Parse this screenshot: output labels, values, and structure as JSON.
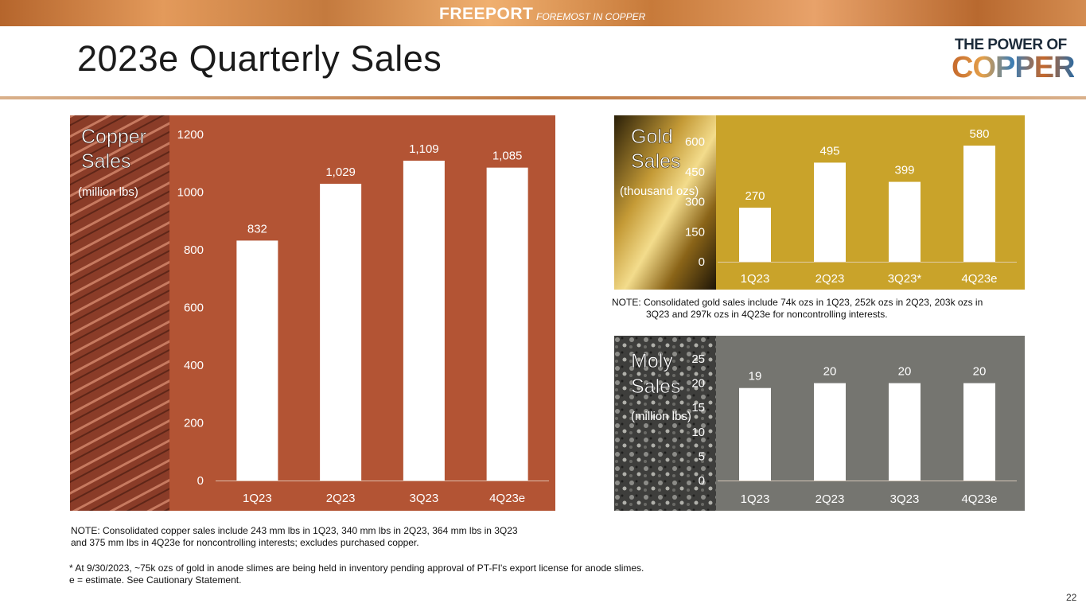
{
  "header": {
    "brand": "FREEPORT",
    "tagline": "FOREMOST IN COPPER",
    "title": "2023e Quarterly Sales",
    "badge_top": "THE POWER OF",
    "badge_bottom": "COPPER"
  },
  "colors": {
    "copper_bg": "#b35434",
    "gold_bg": "#c9a32a",
    "moly_bg": "#757570",
    "bar": "#ffffff"
  },
  "panels": {
    "copper": {
      "title_line1": "Copper",
      "title_line2": "Sales",
      "unit": "(million lbs)"
    },
    "gold": {
      "title_line1": "Gold",
      "title_line2": "Sales",
      "unit": "(thousand ozs)"
    },
    "moly": {
      "title_line1": "Moly",
      "title_line2": "Sales",
      "unit": "(million lbs)"
    }
  },
  "chart_data": [
    {
      "id": "copper",
      "type": "bar",
      "categories": [
        "1Q23",
        "2Q23",
        "3Q23",
        "4Q23e"
      ],
      "values": [
        832,
        1029,
        1109,
        1085
      ],
      "value_labels": [
        "832",
        "1,029",
        "1,109",
        "1,085"
      ],
      "ylim": [
        0,
        1200
      ],
      "yticks": [
        "0",
        "200",
        "400",
        "600",
        "800",
        "1000",
        "1200"
      ],
      "grid": false
    },
    {
      "id": "gold",
      "type": "bar",
      "categories": [
        "1Q23",
        "2Q23",
        "3Q23*",
        "4Q23e"
      ],
      "values": [
        270,
        495,
        399,
        580
      ],
      "value_labels": [
        "270",
        "495",
        "399",
        "580"
      ],
      "ylim": [
        0,
        600
      ],
      "yticks": [
        "0",
        "150",
        "300",
        "450",
        "600"
      ],
      "grid": false
    },
    {
      "id": "moly",
      "type": "bar",
      "categories": [
        "1Q23",
        "2Q23",
        "3Q23",
        "4Q23e"
      ],
      "values": [
        19,
        20,
        20,
        20
      ],
      "value_labels": [
        "19",
        "20",
        "20",
        "20"
      ],
      "ylim": [
        0,
        25
      ],
      "yticks": [
        "0",
        "5",
        "10",
        "15",
        "20",
        "25"
      ],
      "grid": false
    }
  ],
  "notes": {
    "gold_line1": "NOTE: Consolidated gold sales include 74k ozs in 1Q23, 252k ozs in 2Q23, 203k ozs in",
    "gold_line2": "3Q23 and 297k ozs in 4Q23e for noncontrolling interests.",
    "copper_line1": "NOTE: Consolidated copper sales include 243 mm lbs in 1Q23, 340 mm lbs in 2Q23, 364 mm lbs in 3Q23",
    "copper_line2": "and 375 mm lbs in 4Q23e for noncontrolling interests; excludes purchased copper.",
    "footnote1": "* At 9/30/2023, ~75k ozs of gold in anode slimes are being held in inventory pending approval of PT-FI's export license for anode slimes.",
    "footnote2": "e = estimate. See Cautionary Statement."
  },
  "page_number": "22"
}
